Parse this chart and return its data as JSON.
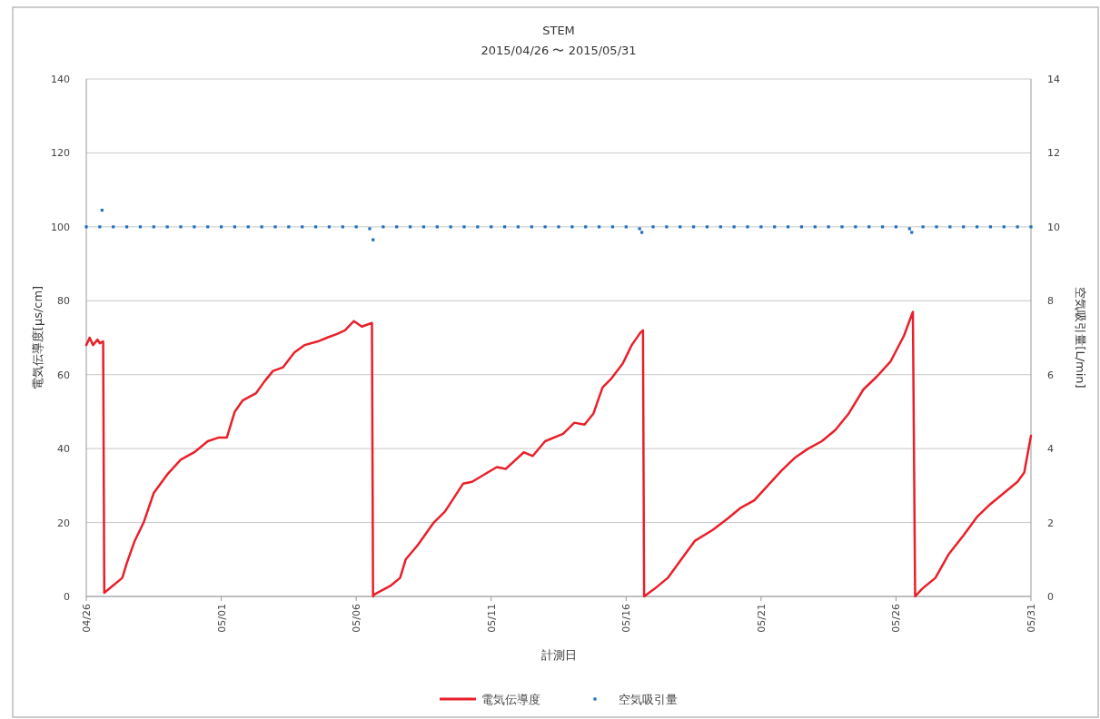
{
  "chart_data": {
    "type": "line",
    "title": "STEM",
    "subtitle": "2015/04/26 〜 2015/05/31",
    "xlabel": "計測日",
    "ylabel": "電気伝導度[μs/cm]",
    "y2label": "空気吸引量[L/min]",
    "xlim": [
      "2015-04-26",
      "2015-05-31"
    ],
    "xticks": [
      {
        "value": "2015-04-26",
        "label": "04/26"
      },
      {
        "value": "2015-05-01",
        "label": "05/01"
      },
      {
        "value": "2015-05-06",
        "label": "05/06"
      },
      {
        "value": "2015-05-11",
        "label": "05/11"
      },
      {
        "value": "2015-05-16",
        "label": "05/16"
      },
      {
        "value": "2015-05-21",
        "label": "05/21"
      },
      {
        "value": "2015-05-26",
        "label": "05/26"
      },
      {
        "value": "2015-05-31",
        "label": "05/31"
      }
    ],
    "ylim": [
      0,
      140
    ],
    "yticks": [
      0,
      20,
      40,
      60,
      80,
      100,
      120,
      140
    ],
    "y2lim": [
      0,
      14
    ],
    "y2ticks": [
      0,
      2,
      4,
      6,
      8,
      10,
      12,
      14
    ],
    "grid": "y",
    "legend": "bottom",
    "series": [
      {
        "name": "電気伝導度",
        "color": "#e8202a",
        "x": [
          "2015-04-26T00:00",
          "2015-04-26T03:00",
          "2015-04-26T06:00",
          "2015-04-26T10:00",
          "2015-04-26T12:00",
          "2015-04-26T15:00",
          "2015-04-26T16:00",
          "2015-04-27T00:00",
          "2015-04-27T08:00",
          "2015-04-27T12:00",
          "2015-04-27T19:00",
          "2015-04-28T03:00",
          "2015-04-28T12:00",
          "2015-04-29T00:00",
          "2015-04-29T12:00",
          "2015-04-30T00:00",
          "2015-04-30T12:00",
          "2015-04-30T22:00",
          "2015-05-01T05:00",
          "2015-05-01T12:00",
          "2015-05-01T19:00",
          "2015-05-02T07:00",
          "2015-05-02T14:00",
          "2015-05-02T22:00",
          "2015-05-03T07:00",
          "2015-05-03T17:00",
          "2015-05-04T02:00",
          "2015-05-04T14:00",
          "2015-05-04T22:00",
          "2015-05-05T07:00",
          "2015-05-05T14:00",
          "2015-05-05T22:00",
          "2015-05-06T05:00",
          "2015-05-06T14:00",
          "2015-05-06T15:00",
          "2015-05-06T16:00",
          "2015-05-07T07:00",
          "2015-05-07T15:00",
          "2015-05-07T20:00",
          "2015-05-08T07:00",
          "2015-05-08T21:00",
          "2015-05-09T07:00",
          "2015-05-09T23:00",
          "2015-05-10T07:00",
          "2015-05-11T05:00",
          "2015-05-11T13:00",
          "2015-05-12T05:00",
          "2015-05-12T13:00",
          "2015-05-13T00:00",
          "2015-05-13T16:00",
          "2015-05-14T02:00",
          "2015-05-14T11:00",
          "2015-05-14T19:00",
          "2015-05-15T03:00",
          "2015-05-15T11:00",
          "2015-05-15T21:00",
          "2015-05-16T05:00",
          "2015-05-16T13:00",
          "2015-05-16T15:00",
          "2015-05-16T16:00",
          "2015-05-17T01:00",
          "2015-05-17T13:00",
          "2015-05-18T01:00",
          "2015-05-18T13:00",
          "2015-05-19T05:00",
          "2015-05-19T18:00",
          "2015-05-20T06:00",
          "2015-05-20T18:00",
          "2015-05-21T06:00",
          "2015-05-21T18:00",
          "2015-05-22T06:00",
          "2015-05-22T18:00",
          "2015-05-23T06:00",
          "2015-05-23T18:00",
          "2015-05-24T06:00",
          "2015-05-24T19:00",
          "2015-05-25T07:00",
          "2015-05-25T19:00",
          "2015-05-26T07:00",
          "2015-05-26T15:00",
          "2015-05-26T17:00",
          "2015-05-26T23:00",
          "2015-05-27T11:00",
          "2015-05-27T23:00",
          "2015-05-28T12:00",
          "2015-05-29T00:00",
          "2015-05-29T12:00",
          "2015-05-30T00:00",
          "2015-05-30T12:00",
          "2015-05-30T18:00",
          "2015-05-31T00:00"
        ],
        "values": [
          68,
          70,
          68,
          69.5,
          68.5,
          69,
          1,
          3,
          5,
          9,
          15,
          20,
          28,
          33,
          37,
          39,
          42,
          43,
          43,
          50,
          53,
          55,
          58,
          61,
          62,
          66,
          68,
          69,
          70,
          71,
          72,
          74.5,
          73,
          74,
          0,
          0.5,
          3,
          5,
          10,
          14,
          20,
          23,
          30.5,
          31,
          35,
          34.5,
          39,
          38,
          42,
          44,
          47,
          46.5,
          49.5,
          56.5,
          59,
          63,
          68,
          71.5,
          72,
          0,
          2,
          5,
          10,
          15,
          18,
          21,
          24,
          26,
          30,
          34,
          37.5,
          40,
          42,
          45,
          49.5,
          56,
          59.5,
          63.5,
          70.5,
          77,
          0,
          2,
          5,
          11.5,
          16.5,
          21.5,
          25,
          28,
          31,
          33.5,
          43.5
        ]
      },
      {
        "name": "空気吸引量",
        "type": "scatter",
        "axis": "y2",
        "color": "#1f6fc0",
        "marker": "square",
        "x": [
          "2015-04-26T00:00",
          "2015-04-26T12:00",
          "2015-04-26T14:00",
          "2015-04-27T00:00",
          "2015-04-27T12:00",
          "2015-04-28T00:00",
          "2015-04-28T12:00",
          "2015-04-29T00:00",
          "2015-04-29T12:00",
          "2015-04-30T00:00",
          "2015-04-30T12:00",
          "2015-05-01T00:00",
          "2015-05-01T12:00",
          "2015-05-02T00:00",
          "2015-05-02T12:00",
          "2015-05-03T00:00",
          "2015-05-03T12:00",
          "2015-05-04T00:00",
          "2015-05-04T12:00",
          "2015-05-05T00:00",
          "2015-05-05T12:00",
          "2015-05-06T00:00",
          "2015-05-06T12:00",
          "2015-05-06T15:00",
          "2015-05-07T00:00",
          "2015-05-07T12:00",
          "2015-05-08T00:00",
          "2015-05-08T12:00",
          "2015-05-09T00:00",
          "2015-05-09T12:00",
          "2015-05-10T00:00",
          "2015-05-10T12:00",
          "2015-05-11T00:00",
          "2015-05-11T12:00",
          "2015-05-12T00:00",
          "2015-05-12T12:00",
          "2015-05-13T00:00",
          "2015-05-13T12:00",
          "2015-05-14T00:00",
          "2015-05-14T12:00",
          "2015-05-15T00:00",
          "2015-05-15T12:00",
          "2015-05-16T00:00",
          "2015-05-16T12:00",
          "2015-05-16T14:00",
          "2015-05-17T00:00",
          "2015-05-17T12:00",
          "2015-05-18T00:00",
          "2015-05-18T12:00",
          "2015-05-19T00:00",
          "2015-05-19T12:00",
          "2015-05-20T00:00",
          "2015-05-20T12:00",
          "2015-05-21T00:00",
          "2015-05-21T12:00",
          "2015-05-22T00:00",
          "2015-05-22T12:00",
          "2015-05-23T00:00",
          "2015-05-23T12:00",
          "2015-05-24T00:00",
          "2015-05-24T12:00",
          "2015-05-25T00:00",
          "2015-05-25T12:00",
          "2015-05-26T00:00",
          "2015-05-26T12:00",
          "2015-05-26T14:00",
          "2015-05-27T00:00",
          "2015-05-27T12:00",
          "2015-05-28T00:00",
          "2015-05-28T12:00",
          "2015-05-29T00:00",
          "2015-05-29T12:00",
          "2015-05-30T00:00",
          "2015-05-30T12:00",
          "2015-05-31T00:00"
        ],
        "values": [
          10,
          10,
          10.45,
          10,
          10,
          10,
          10,
          10,
          10,
          10,
          10,
          10,
          10,
          10,
          10,
          10,
          10,
          10,
          10,
          10,
          10,
          10,
          9.95,
          9.65,
          10,
          10,
          10,
          10,
          10,
          10,
          10,
          10,
          10,
          10,
          10,
          10,
          10,
          10,
          10,
          10,
          10,
          10,
          10,
          9.95,
          9.85,
          10,
          10,
          10,
          10,
          10,
          10,
          10,
          10,
          10,
          10,
          10,
          10,
          10,
          10,
          10,
          10,
          10,
          10,
          10,
          9.95,
          9.85,
          10,
          10,
          10,
          10,
          10,
          10,
          10,
          10,
          10
        ]
      }
    ]
  }
}
